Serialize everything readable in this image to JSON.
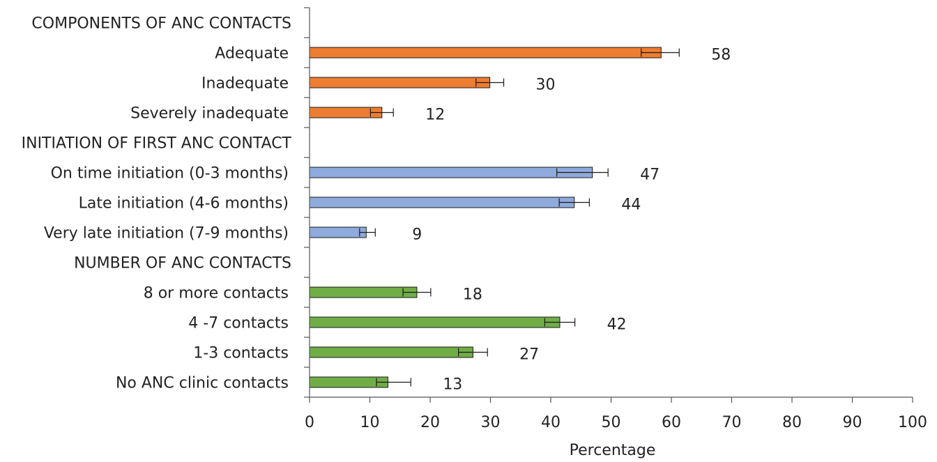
{
  "chart_data": {
    "type": "bar",
    "orientation": "horizontal",
    "xlabel": "Percentage",
    "xlim": [
      0,
      100
    ],
    "xticks": [
      "0",
      "10",
      "20",
      "30",
      "40",
      "50",
      "60",
      "70",
      "80",
      "90",
      "100"
    ],
    "grid": false,
    "rows": [
      {
        "label": "COMPONENTS OF ANC CONTACTS",
        "header": true
      },
      {
        "label": "Adequate",
        "value": 58.3,
        "err_low": 55.0,
        "err_high": 61.3,
        "value_label": "58",
        "color": "#ed7d31"
      },
      {
        "label": "Inadequate",
        "value": 29.9,
        "err_low": 27.6,
        "err_high": 32.2,
        "value_label": "30",
        "color": "#ed7d31"
      },
      {
        "label": "Severely inadequate",
        "value": 12.0,
        "err_low": 10.1,
        "err_high": 13.9,
        "value_label": "12",
        "color": "#ed7d31"
      },
      {
        "label": "INITIATION OF FIRST ANC CONTACT",
        "header": true
      },
      {
        "label": "On time initiation (0-3 months)",
        "value": 46.9,
        "err_low": 41.0,
        "err_high": 49.5,
        "value_label": "47",
        "color": "#8faadc"
      },
      {
        "label": "Late initiation (4-6 months)",
        "value": 43.9,
        "err_low": 41.4,
        "err_high": 46.4,
        "value_label": "44",
        "color": "#8faadc"
      },
      {
        "label": "Very late initiation (7-9 months)",
        "value": 9.4,
        "err_low": 8.3,
        "err_high": 10.9,
        "value_label": "9",
        "color": "#8faadc"
      },
      {
        "label": "NUMBER OF ANC CONTACTS",
        "header": true
      },
      {
        "label": "8 or more contacts",
        "value": 17.8,
        "err_low": 15.5,
        "err_high": 20.1,
        "value_label": "18",
        "color": "#70ad47"
      },
      {
        "label": "4 -7 contacts",
        "value": 41.5,
        "err_low": 39.0,
        "err_high": 44.0,
        "value_label": "42",
        "color": "#70ad47"
      },
      {
        "label": "1-3 contacts",
        "value": 27.1,
        "err_low": 24.7,
        "err_high": 29.5,
        "value_label": "27",
        "color": "#70ad47"
      },
      {
        "label": "No ANC clinic contacts",
        "value": 13.0,
        "err_low": 11.1,
        "err_high": 16.8,
        "value_label": "13",
        "color": "#70ad47"
      }
    ]
  }
}
